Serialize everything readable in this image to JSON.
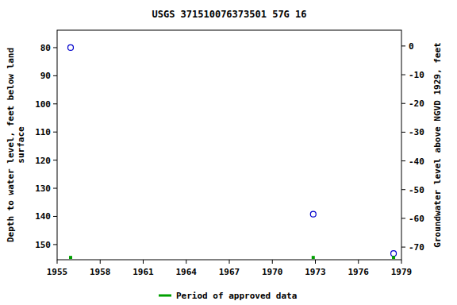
{
  "chart_data": {
    "type": "scatter",
    "title": "USGS 371510076373501 57G 16",
    "y_label": [
      "Depth to water level, feet below land",
      "surface"
    ],
    "y2_label": "Groundwater level above NGVD 1929, feet",
    "xlim": [
      1955,
      1979
    ],
    "xticks": [
      1955,
      1958,
      1961,
      1964,
      1967,
      1970,
      1973,
      1976,
      1979
    ],
    "ylim": [
      155.4,
      73.8
    ],
    "yticks": [
      80,
      90,
      100,
      110,
      120,
      130,
      140,
      150
    ],
    "y2lim": [
      -74.4,
      5.5
    ],
    "y2ticks": [
      0,
      -10,
      -20,
      -30,
      -40,
      -50,
      -60,
      -70
    ],
    "legend": "bottom",
    "series": [
      {
        "color": "#0000cc",
        "marker": "circle-open",
        "x": [
          1955.94,
          1972.85,
          1978.45
        ],
        "values": [
          80,
          139.2,
          153.2
        ]
      },
      {
        "name": "Period of approved data",
        "color": "#00a000",
        "marker": "square",
        "x": [
          1955.94,
          1972.85,
          1978.45
        ],
        "values": [
          154.6,
          154.6,
          154.6
        ]
      }
    ]
  }
}
